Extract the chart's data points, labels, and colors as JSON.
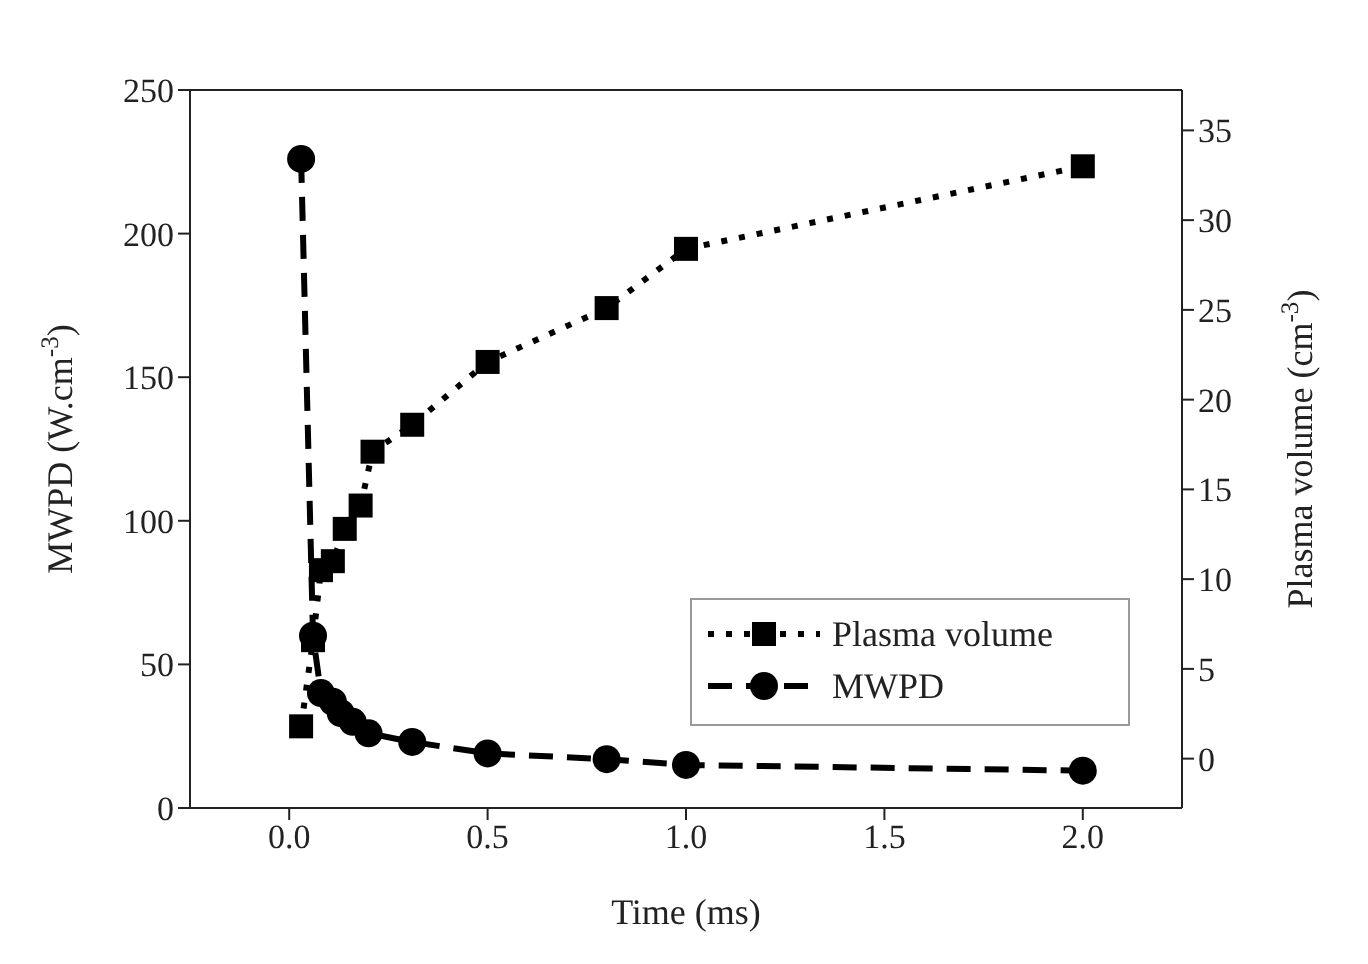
{
  "chart_data": {
    "type": "line",
    "xlabel": "Time (ms)",
    "ylabel": "MWPD (W.cm$^{-3}$)",
    "y2label": "Plasma volume (cm$^{-3}$)",
    "xlim": [
      -0.25,
      2.25
    ],
    "xticks": [
      {
        "value": 0,
        "label": "0.0"
      },
      {
        "value": 0.5,
        "label": "0.5"
      },
      {
        "value": 1,
        "label": "1.0"
      },
      {
        "value": 1.5,
        "label": "1.5"
      },
      {
        "value": 2,
        "label": "2.0"
      }
    ],
    "ylim": [
      0,
      250
    ],
    "yticks": [
      0,
      50,
      100,
      150,
      200,
      250
    ],
    "y2lim": [
      -2.75,
      37.25
    ],
    "y2ticks": [
      0,
      5,
      10,
      15,
      20,
      25,
      30,
      35
    ],
    "legend": "bottom right",
    "grid": false,
    "series": [
      {
        "name": "Plasma volume",
        "color": "#000000",
        "axis": "y2",
        "marker": "square",
        "line_style": "dotted",
        "x": [
          0.03,
          0.06,
          0.08,
          0.11,
          0.14,
          0.18,
          0.21,
          0.31,
          0.5,
          0.8,
          1.0,
          2.0
        ],
        "values": [
          1.8,
          6.6,
          10.5,
          11,
          12.8,
          14.1,
          17.1,
          18.6,
          22.1,
          25.1,
          28.4,
          33
        ]
      },
      {
        "name": "MWPD",
        "color": "#000000",
        "marker": "circle",
        "line_style": "dashed",
        "x": [
          0.03,
          0.06,
          0.08,
          0.11,
          0.13,
          0.16,
          0.2,
          0.31,
          0.5,
          0.8,
          1.0,
          2.0
        ],
        "values": [
          226,
          60,
          40,
          37,
          33,
          30,
          26,
          23,
          19,
          17,
          15,
          13
        ]
      }
    ]
  }
}
